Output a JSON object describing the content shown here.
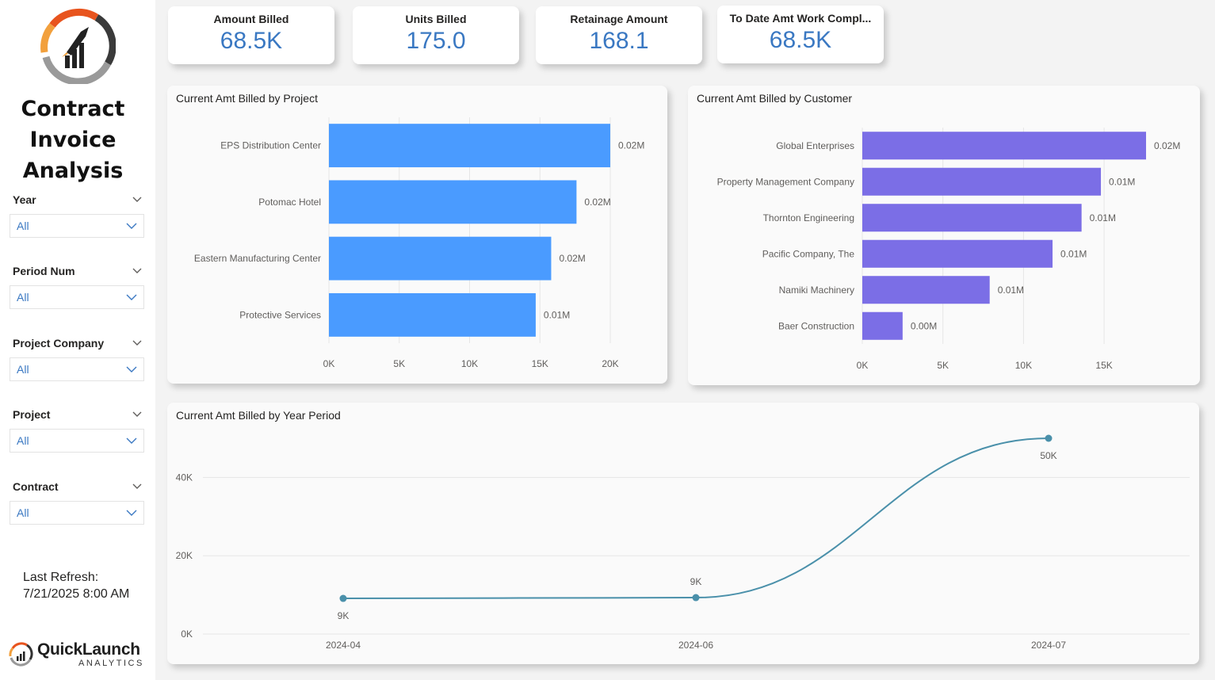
{
  "sidebar": {
    "title_lines": [
      "Contract",
      "Invoice",
      "Analysis"
    ],
    "slicers": [
      {
        "label": "Year",
        "value": "All"
      },
      {
        "label": "Period Num",
        "value": "All"
      },
      {
        "label": "Project Company",
        "value": "All"
      },
      {
        "label": "Project",
        "value": "All"
      },
      {
        "label": "Contract",
        "value": "All"
      }
    ],
    "refresh_label": "Last Refresh:",
    "refresh_time": "7/21/2025 8:00 AM",
    "brand_name": "QuickLaunch",
    "brand_sub": "ANALYTICS"
  },
  "kpis": [
    {
      "label": "Amount Billed",
      "value": "68.5K"
    },
    {
      "label": "Units Billed",
      "value": "175.0"
    },
    {
      "label": "Retainage Amount",
      "value": "168.1"
    },
    {
      "label": "To Date Amt Work Compl...",
      "value": "68.5K"
    }
  ],
  "colors": {
    "accent": "#3a78c2",
    "project_bars": "#4a9bff",
    "customer_bars": "#7b6ee6",
    "line": "#4a90aa"
  },
  "chart_data": [
    {
      "type": "bar",
      "title": "Current Amt Billed by Project",
      "orientation": "horizontal",
      "categories": [
        "EPS Distribution Center",
        "Potomac Hotel",
        "Eastern Manufacturing Center",
        "Protective Services"
      ],
      "values": [
        20000,
        17600,
        15800,
        14700
      ],
      "data_labels": [
        "0.02M",
        "0.02M",
        "0.02M",
        "0.01M"
      ],
      "xlim": [
        0,
        20000
      ],
      "xticks": [
        0,
        5000,
        10000,
        15000,
        20000
      ],
      "xtick_labels": [
        "0K",
        "5K",
        "10K",
        "15K",
        "20K"
      ],
      "grid": true
    },
    {
      "type": "bar",
      "title": "Current Amt Billed by Customer",
      "orientation": "horizontal",
      "categories": [
        "Global Enterprises",
        "Property Management Company",
        "Thornton Engineering",
        "Pacific Company, The",
        "Namiki Machinery",
        "Baer Construction"
      ],
      "values": [
        17600,
        14800,
        13600,
        11800,
        7900,
        2500
      ],
      "data_labels": [
        "0.02M",
        "0.01M",
        "0.01M",
        "0.01M",
        "0.01M",
        "0.00M"
      ],
      "xlim": [
        0,
        17600
      ],
      "xticks": [
        0,
        5000,
        10000,
        15000
      ],
      "xtick_labels": [
        "0K",
        "5K",
        "10K",
        "15K"
      ],
      "grid": true
    },
    {
      "type": "line",
      "title": "Current Amt Billed by Year Period",
      "x": [
        "2024-04",
        "2024-06",
        "2024-07"
      ],
      "y": [
        9100,
        9300,
        50000
      ],
      "data_labels": [
        "9K",
        "9K",
        "50K"
      ],
      "ylim": [
        0,
        50000
      ],
      "yticks": [
        0,
        20000,
        40000
      ],
      "ytick_labels": [
        "0K",
        "20K",
        "40K"
      ],
      "grid": true
    }
  ]
}
